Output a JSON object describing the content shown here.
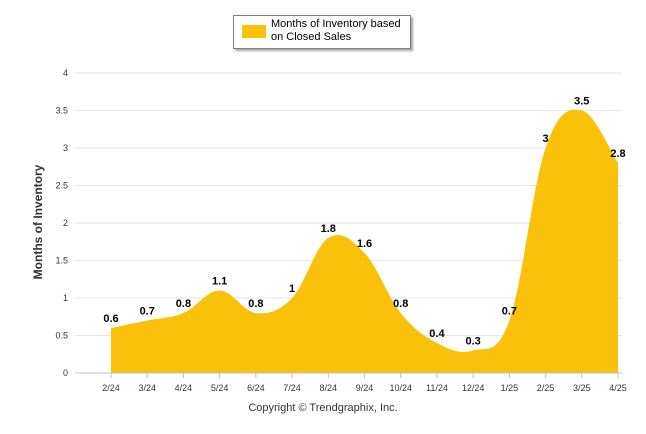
{
  "chart_data": {
    "type": "area",
    "categories": [
      "2/24",
      "3/24",
      "4/24",
      "5/24",
      "6/24",
      "7/24",
      "8/24",
      "9/24",
      "10/24",
      "11/24",
      "12/24",
      "1/25",
      "2/25",
      "3/25",
      "4/25"
    ],
    "series": [
      {
        "name": "Months of Inventory based on Closed Sales",
        "values": [
          0.6,
          0.7,
          0.8,
          1.1,
          0.8,
          1,
          1.8,
          1.6,
          0.8,
          0.4,
          0.3,
          0.7,
          3,
          3.5,
          2.8
        ],
        "color": "#f9c10a"
      }
    ],
    "ylabel": "Months of Inventory",
    "xlabel": "",
    "ylim": [
      0,
      4
    ],
    "yticks": [
      "0",
      "0.5",
      "1",
      "1.5",
      "2",
      "2.5",
      "3",
      "3.5",
      "4"
    ],
    "grid": true,
    "legend_position": "top-center"
  },
  "legend": {
    "line1": "Months of Inventory based",
    "line2": "on Closed Sales"
  },
  "footer": {
    "copyright": "Copyright © Trendgraphix, Inc."
  }
}
